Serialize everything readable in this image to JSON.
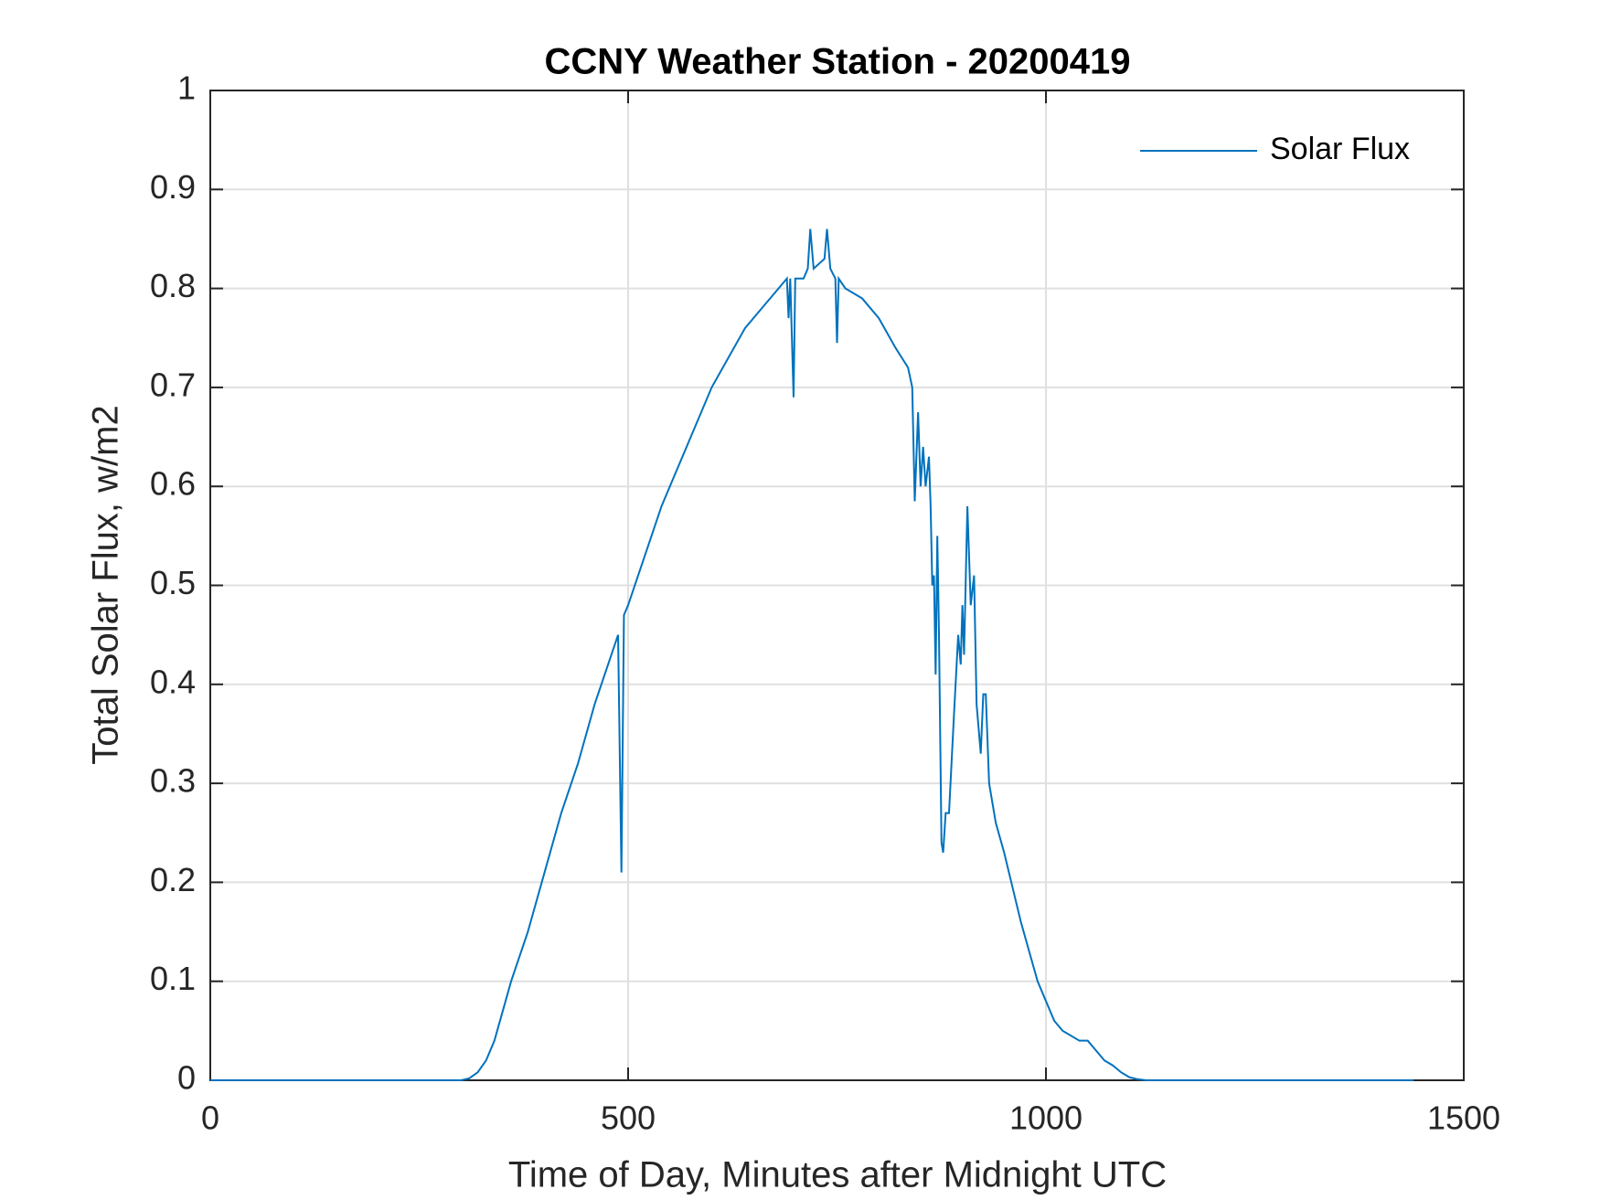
{
  "chart_data": {
    "type": "line",
    "title": "CCNY Weather Station - 20200419",
    "xlabel": "Time of Day, Minutes after Midnight UTC",
    "ylabel": "Total Solar Flux, w/m2",
    "x": [
      0,
      100,
      200,
      300,
      310,
      320,
      330,
      340,
      350,
      360,
      380,
      400,
      420,
      440,
      460,
      480,
      488,
      492,
      495,
      500,
      520,
      540,
      560,
      580,
      600,
      620,
      640,
      660,
      680,
      690,
      692,
      694,
      698,
      700,
      710,
      715,
      718,
      722,
      735,
      738,
      742,
      748,
      750,
      752,
      760,
      780,
      800,
      820,
      835,
      840,
      843,
      847,
      850,
      853,
      856,
      860,
      862,
      864,
      866,
      868,
      870,
      872,
      875,
      877,
      880,
      884,
      890,
      895,
      898,
      900,
      902,
      906,
      910,
      914,
      917,
      922,
      925,
      928,
      932,
      940,
      950,
      960,
      970,
      980,
      990,
      1000,
      1010,
      1020,
      1040,
      1050,
      1060,
      1070,
      1080,
      1090,
      1100,
      1110,
      1120,
      1200,
      1300,
      1440
    ],
    "series": [
      {
        "name": "Solar Flux",
        "color": "#0072bd",
        "values": [
          0,
          0,
          0,
          0,
          0.002,
          0.008,
          0.02,
          0.04,
          0.07,
          0.1,
          0.15,
          0.21,
          0.27,
          0.32,
          0.38,
          0.43,
          0.45,
          0.21,
          0.47,
          0.48,
          0.53,
          0.58,
          0.62,
          0.66,
          0.7,
          0.73,
          0.76,
          0.78,
          0.8,
          0.81,
          0.77,
          0.81,
          0.69,
          0.81,
          0.81,
          0.82,
          0.86,
          0.82,
          0.83,
          0.86,
          0.82,
          0.81,
          0.745,
          0.81,
          0.8,
          0.79,
          0.77,
          0.74,
          0.72,
          0.7,
          0.585,
          0.675,
          0.6,
          0.64,
          0.6,
          0.63,
          0.58,
          0.5,
          0.51,
          0.41,
          0.55,
          0.45,
          0.24,
          0.23,
          0.27,
          0.27,
          0.37,
          0.45,
          0.42,
          0.48,
          0.43,
          0.58,
          0.48,
          0.51,
          0.38,
          0.33,
          0.39,
          0.39,
          0.3,
          0.26,
          0.23,
          0.195,
          0.16,
          0.13,
          0.1,
          0.08,
          0.06,
          0.05,
          0.04,
          0.04,
          0.03,
          0.02,
          0.015,
          0.008,
          0.003,
          0.001,
          0,
          0,
          0,
          0
        ]
      }
    ],
    "xlim": [
      0,
      1500
    ],
    "xticks": [
      0,
      500,
      1000,
      1500
    ],
    "ylim": [
      0,
      1
    ],
    "yticks": [
      0,
      0.1,
      0.2,
      0.3,
      0.4,
      0.5,
      0.6,
      0.7,
      0.8,
      0.9,
      1
    ],
    "grid": true,
    "legend": "upper-right"
  }
}
